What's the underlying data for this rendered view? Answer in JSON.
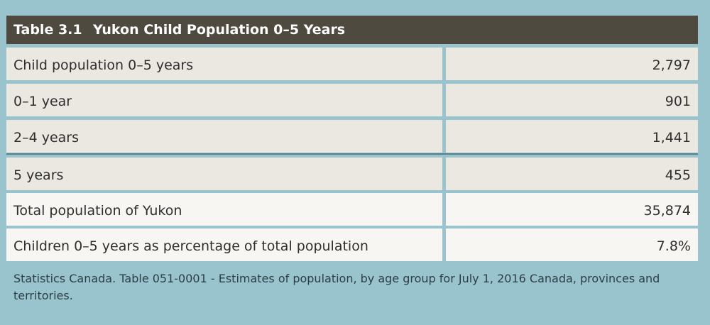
{
  "table": {
    "number": "Table 3.1",
    "title": "Yukon Child Population 0–5 Years",
    "rows": [
      {
        "label": "Child population 0–5 years",
        "value": "2,797"
      },
      {
        "label": "0–1 year",
        "value": "901"
      },
      {
        "label": "2–4 years",
        "value": "1,441"
      },
      {
        "label": "5 years",
        "value": "455"
      },
      {
        "label": "Total population of Yukon",
        "value": "35,874"
      },
      {
        "label": "Children 0–5 years as percentage of total population",
        "value": "7.8%"
      }
    ],
    "source": "Statistics Canada. Table 051-0001 - Estimates of population, by age group for July 1, 2016 Canada, provinces and territories."
  },
  "colors": {
    "background": "#99c4ce",
    "header": "#4f4a40",
    "row_tinted": "#ebe8e2",
    "row_plain": "#f7f6f3"
  }
}
